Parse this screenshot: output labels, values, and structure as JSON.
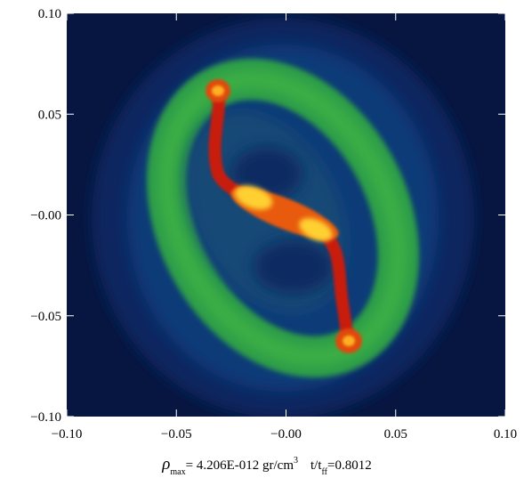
{
  "chart_data": {
    "type": "image",
    "xlim": [
      -0.1,
      0.1
    ],
    "ylim": [
      -0.1,
      0.1
    ],
    "xticks": [
      {
        "value": -0.1,
        "label": "−0.10"
      },
      {
        "value": -0.05,
        "label": "−0.05"
      },
      {
        "value": 0,
        "label": "−0.00"
      },
      {
        "value": 0.05,
        "label": "0.05"
      },
      {
        "value": 0.1,
        "label": "0.10"
      }
    ],
    "yticks": [
      {
        "value": -0.1,
        "label": "−0.10"
      },
      {
        "value": -0.05,
        "label": "−0.05"
      },
      {
        "value": 0,
        "label": "−0.00"
      },
      {
        "value": 0.05,
        "label": "0.05"
      },
      {
        "value": 0.1,
        "label": "0.10"
      }
    ],
    "caption": {
      "rho": "ρ",
      "rho_sub": "max",
      "rho_value": "= 4.206E-012 gr/cm",
      "unit_sup": "3",
      "time": "t/t",
      "time_sub": "ff",
      "time_value": "=0.8012"
    }
  }
}
